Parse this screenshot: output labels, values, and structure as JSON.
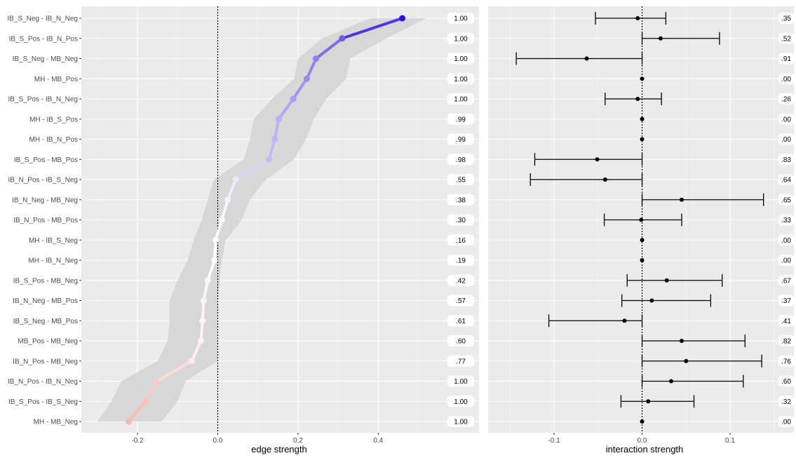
{
  "chart_data": [
    {
      "type": "line",
      "xlabel": "edge strength",
      "xlim": [
        -0.34,
        0.59
      ],
      "xticks": [
        -0.2,
        0.0,
        0.2,
        0.4
      ],
      "xtick_labels": [
        "-0.2",
        "0.0",
        "0.2",
        "0.4"
      ],
      "reference_line_x": 0,
      "grid": true,
      "color_low": "#f0695a",
      "color_mid": "#ffffff",
      "color_high": "#2a0fe0",
      "ribbon_color": "#d3d3d3",
      "categories": [
        "IB_S_Neg - IB_N_Neg",
        "IB_S_Pos - IB_N_Pos",
        "IB_S_Neg - MB_Neg",
        "MH - MB_Pos",
        "IB_S_Pos - IB_N_Neg",
        "MH - IB_S_Pos",
        "MH - IB_N_Pos",
        "IB_S_Pos - MB_Pos",
        "IB_N_Pos - IB_S_Neg",
        "IB_N_Neg - MB_Neg",
        "IB_N_Pos - MB_Pos",
        "MH - IB_S_Neg",
        "MH - IB_N_Neg",
        "IB_S_Pos - MB_Neg",
        "IB_N_Neg - MB_Pos",
        "IB_S_Neg - MB_Pos",
        "MB_Pos - MB_Neg",
        "IB_N_Pos - MB_Neg",
        "IB_N_Pos - IB_N_Neg",
        "IB_S_Pos - IB_S_Neg",
        "MH - MB_Neg"
      ],
      "values": [
        0.46,
        0.31,
        0.245,
        0.222,
        0.188,
        0.152,
        0.142,
        0.128,
        0.045,
        0.025,
        0.01,
        -0.005,
        -0.008,
        -0.025,
        -0.035,
        -0.038,
        -0.042,
        -0.065,
        -0.152,
        -0.18,
        -0.222
      ],
      "ribbon_low": [
        0.38,
        0.26,
        0.2,
        0.19,
        0.135,
        0.09,
        0.08,
        0.065,
        -0.01,
        -0.025,
        -0.04,
        -0.06,
        -0.075,
        -0.1,
        -0.12,
        -0.12,
        -0.125,
        -0.15,
        -0.24,
        -0.265,
        -0.3
      ],
      "ribbon_high": [
        0.52,
        0.42,
        0.33,
        0.32,
        0.27,
        0.24,
        0.22,
        0.19,
        0.12,
        0.08,
        0.06,
        0.02,
        0.01,
        0.005,
        0.0,
        0.0,
        0.0,
        0.0,
        -0.08,
        -0.1,
        -0.14
      ],
      "labels": [
        "1.00",
        "1.00",
        "1.00",
        "1.00",
        "1.00",
        ".99",
        ".99",
        ".98",
        ".55",
        ".38",
        ".30",
        ".16",
        ".19",
        ".42",
        ".57",
        ".61",
        ".60",
        ".77",
        "1.00",
        "1.00",
        "1.00"
      ]
    },
    {
      "type": "scatter",
      "xlabel": "interaction strength",
      "xlim": [
        -0.175,
        0.155
      ],
      "xticks": [
        -0.1,
        0.0,
        0.1
      ],
      "xtick_labels": [
        "-0.1",
        "0.0",
        "0.1"
      ],
      "reference_line_x": 0,
      "grid": true,
      "values": [
        -0.005,
        0.021,
        -0.063,
        0.0,
        -0.005,
        0.0,
        0.0,
        -0.051,
        -0.042,
        0.045,
        -0.001,
        0.0,
        0.0,
        0.028,
        0.011,
        -0.02,
        0.045,
        0.05,
        0.033,
        0.007,
        0.0
      ],
      "ci_low": [
        -0.053,
        0.0,
        -0.143,
        0.0,
        -0.042,
        0.0,
        0.0,
        -0.122,
        -0.127,
        0.0,
        -0.043,
        0.0,
        0.0,
        -0.017,
        -0.023,
        -0.106,
        0.0,
        0.0,
        0.0,
        -0.024,
        0.0
      ],
      "ci_high": [
        0.027,
        0.088,
        0.0,
        0.0,
        0.022,
        0.0,
        0.0,
        0.0,
        0.0,
        0.138,
        0.045,
        0.0,
        0.0,
        0.091,
        0.078,
        0.0,
        0.117,
        0.136,
        0.115,
        0.059,
        0.0
      ],
      "labels": [
        ".35",
        ".52",
        ".91",
        ".00",
        ".26",
        ".00",
        ".00",
        ".83",
        ".64",
        ".65",
        ".33",
        ".00",
        ".00",
        ".67",
        ".37",
        ".41",
        ".82",
        ".76",
        ".60",
        ".32",
        ".00"
      ]
    }
  ]
}
